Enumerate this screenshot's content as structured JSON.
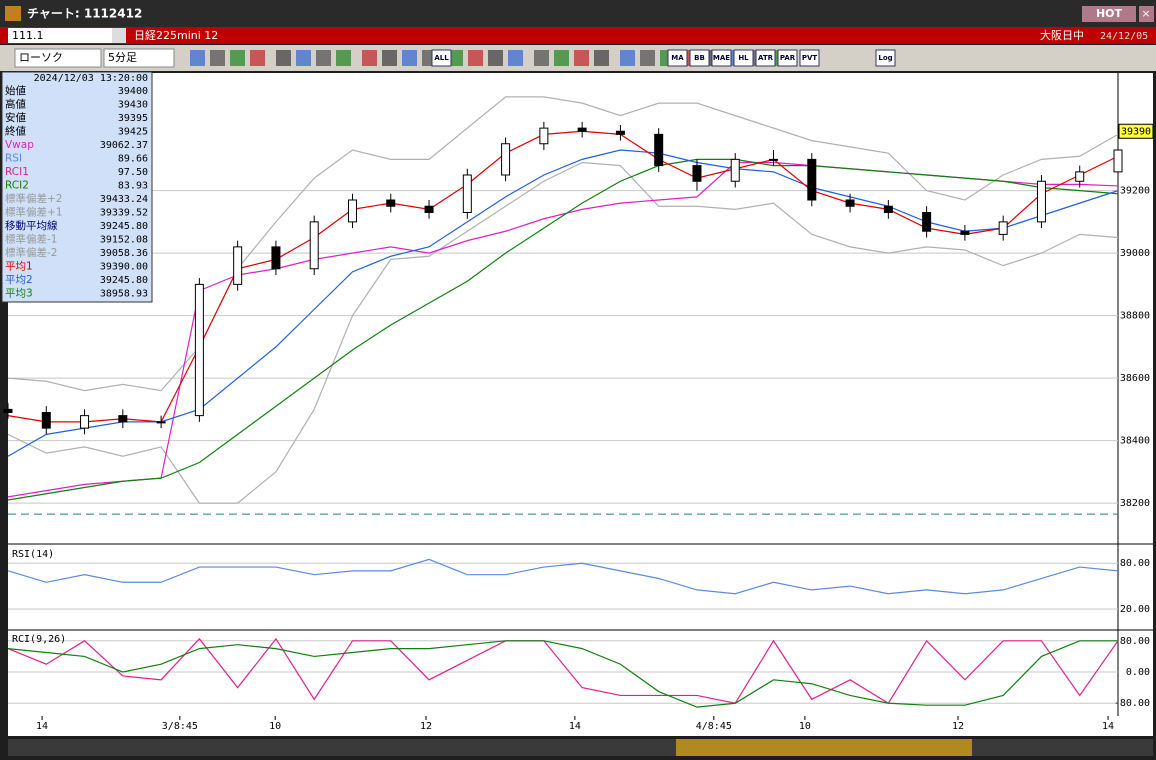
{
  "window": {
    "title": "チャート: 1112412",
    "hot": "HOT"
  },
  "header": {
    "code": "111.1",
    "name": "日経225mini 12",
    "session": "大阪日中",
    "date": "24/12/05"
  },
  "toolbar": {
    "chart_type": "ローソク",
    "interval": "5分足",
    "buttons": [
      "ALL",
      "MA",
      "BB",
      "MAE",
      "HL",
      "ATR",
      "PAR",
      "PVT",
      "Log"
    ]
  },
  "info_panel": {
    "datetime": "2024/12/03  13:20:00",
    "rows": [
      {
        "label": "始値",
        "value": "39400",
        "color": "#000000"
      },
      {
        "label": "高値",
        "value": "39430",
        "color": "#000000"
      },
      {
        "label": "安値",
        "value": "39395",
        "color": "#000000"
      },
      {
        "label": "終値",
        "value": "39425",
        "color": "#000000"
      },
      {
        "label": "Vwap",
        "value": "39062.37",
        "color": "#e020c0"
      },
      {
        "label": "RSI",
        "value": "89.66",
        "color": "#5a8ae0"
      },
      {
        "label": "RCI1",
        "value": "97.50",
        "color": "#e0208a"
      },
      {
        "label": "RCI2",
        "value": "83.93",
        "color": "#108010"
      },
      {
        "label": "標準偏差+2",
        "value": "39433.24",
        "color": "#999999"
      },
      {
        "label": "標準偏差+1",
        "value": "39339.52",
        "color": "#999999"
      },
      {
        "label": "移動平均線",
        "value": "39245.80",
        "color": "#000080"
      },
      {
        "label": "標準偏差-1",
        "value": "39152.08",
        "color": "#999999"
      },
      {
        "label": "標準偏差-2",
        "value": "39058.36",
        "color": "#999999"
      },
      {
        "label": "平均1",
        "value": "39390.00",
        "color": "#e00000"
      },
      {
        "label": "平均2",
        "value": "39245.80",
        "color": "#2060e0"
      },
      {
        "label": "平均3",
        "value": "38958.93",
        "color": "#108010"
      }
    ]
  },
  "chart_data": [
    {
      "type": "candlestick",
      "ylim": [
        38082,
        39570
      ],
      "yticks": [
        39200,
        39000,
        38800,
        38600,
        38400,
        38200
      ],
      "grid": true,
      "xlim": [
        0,
        29
      ],
      "xticks": [
        {
          "value": 0.89,
          "label": "14"
        },
        {
          "value": 4.49,
          "label": "3/8:45"
        },
        {
          "value": 6.98,
          "label": "10"
        },
        {
          "value": 10.92,
          "label": "12"
        },
        {
          "value": 14.81,
          "label": "14"
        },
        {
          "value": 18.44,
          "label": "4/8:45"
        },
        {
          "value": 20.82,
          "label": "10"
        },
        {
          "value": 24.82,
          "label": "12"
        },
        {
          "value": 28.74,
          "label": "14"
        }
      ],
      "last_price": 39390,
      "level": 38165,
      "up_color": "#ffffff",
      "down_color": "#000000",
      "open": [
        38500,
        38490,
        38440,
        38480,
        38460,
        38480,
        38900,
        39020,
        38950,
        39100,
        39170,
        39150,
        39130,
        39250,
        39350,
        39400,
        39390,
        39380,
        39280,
        39230,
        39300,
        39300,
        39170,
        39150,
        39130,
        39070,
        39060,
        39100,
        39230,
        39260
      ],
      "high": [
        38520,
        38510,
        38500,
        38500,
        38480,
        38920,
        39040,
        39040,
        39120,
        39190,
        39190,
        39170,
        39270,
        39370,
        39420,
        39420,
        39410,
        39400,
        39300,
        39320,
        39330,
        39320,
        39190,
        39170,
        39150,
        39090,
        39120,
        39250,
        39280,
        39350
      ],
      "low": [
        38470,
        38420,
        38420,
        38440,
        38440,
        38460,
        38880,
        38930,
        38930,
        39080,
        39130,
        39110,
        39110,
        39230,
        39330,
        39370,
        39360,
        39260,
        39200,
        39210,
        39280,
        39150,
        39130,
        39110,
        39050,
        39040,
        39040,
        39080,
        39210,
        39240
      ],
      "close": [
        38490,
        38440,
        38480,
        38460,
        38460,
        38900,
        39020,
        38950,
        39100,
        39170,
        39150,
        39130,
        39250,
        39350,
        39400,
        39390,
        39380,
        39280,
        39230,
        39300,
        39300,
        39170,
        39150,
        39130,
        39070,
        39060,
        39100,
        39230,
        39260,
        39330
      ],
      "series": [
        {
          "name": "BB+",
          "color": "#b0b0b0",
          "values": [
            38600,
            38590,
            38560,
            38580,
            38560,
            38700,
            38950,
            39100,
            39240,
            39330,
            39300,
            39300,
            39400,
            39500,
            39500,
            39480,
            39440,
            39480,
            39480,
            39440,
            39400,
            39360,
            39340,
            39320,
            39200,
            39170,
            39250,
            39300,
            39310,
            39380
          ]
        },
        {
          "name": "BB-",
          "color": "#b0b0b0",
          "values": [
            38420,
            38360,
            38380,
            38350,
            38380,
            38200,
            38200,
            38300,
            38500,
            38800,
            38980,
            38990,
            39070,
            39150,
            39230,
            39290,
            39280,
            39150,
            39150,
            39140,
            39160,
            39060,
            39020,
            39000,
            39020,
            39010,
            38960,
            39000,
            39060,
            39050
          ]
        },
        {
          "name": "Vwap",
          "color": "#e020c0",
          "values": [
            38220,
            38240,
            38260,
            38270,
            38280,
            38880,
            38930,
            38950,
            38980,
            39000,
            39020,
            39000,
            39040,
            39070,
            39110,
            39140,
            39160,
            39170,
            39180,
            39290,
            39290,
            39280,
            39270,
            39260,
            39250,
            39240,
            39230,
            39220,
            39220,
            39215
          ]
        },
        {
          "name": "平均3",
          "color": "#108010",
          "values": [
            38210,
            38230,
            38250,
            38270,
            38280,
            38330,
            38420,
            38510,
            38600,
            38690,
            38770,
            38840,
            38910,
            39000,
            39080,
            39160,
            39230,
            39280,
            39300,
            39300,
            39280,
            39280,
            39270,
            39260,
            39250,
            39240,
            39230,
            39210,
            39200,
            39190
          ]
        },
        {
          "name": "平均2",
          "color": "#2060e0",
          "values": [
            38350,
            38420,
            38440,
            38460,
            38460,
            38500,
            38600,
            38700,
            38820,
            38940,
            38990,
            39020,
            39100,
            39180,
            39250,
            39300,
            39330,
            39320,
            39290,
            39270,
            39260,
            39210,
            39180,
            39150,
            39100,
            39070,
            39080,
            39120,
            39160,
            39200
          ]
        },
        {
          "name": "平均1",
          "color": "#e00000",
          "values": [
            38480,
            38460,
            38460,
            38470,
            38460,
            38700,
            38950,
            38980,
            39050,
            39140,
            39160,
            39140,
            39220,
            39320,
            39380,
            39390,
            39380,
            39300,
            39240,
            39270,
            39300,
            39200,
            39160,
            39140,
            39080,
            39060,
            39080,
            39190,
            39250,
            39310
          ]
        }
      ]
    },
    {
      "type": "line",
      "title": "RSI(14)",
      "ylim": [
        -5,
        100
      ],
      "yticks": [
        {
          "value": 80,
          "label": "80.00"
        },
        {
          "value": 20,
          "label": "20.00"
        }
      ],
      "series": [
        {
          "name": "RSI",
          "color": "#5a8ae0",
          "values": [
            70,
            55,
            65,
            55,
            55,
            75,
            75,
            75,
            65,
            70,
            70,
            85,
            65,
            65,
            75,
            80,
            70,
            60,
            45,
            40,
            55,
            45,
            50,
            40,
            45,
            40,
            45,
            60,
            75,
            70
          ]
        }
      ]
    },
    {
      "type": "line",
      "title": "RCI(9,26)",
      "ylim": [
        -105,
        100
      ],
      "yticks": [
        {
          "value": 80,
          "label": "80.00"
        },
        {
          "value": 0,
          "label": "0.00"
        },
        {
          "value": -80,
          "label": "-80.00"
        }
      ],
      "series": [
        {
          "name": "RCI1",
          "color": "#e0208a",
          "values": [
            60,
            20,
            80,
            -10,
            -20,
            85,
            -40,
            85,
            -70,
            80,
            80,
            -20,
            30,
            80,
            80,
            -40,
            -60,
            -60,
            -60,
            -80,
            80,
            -70,
            -20,
            -80,
            80,
            -20,
            80,
            80,
            -60,
            80
          ]
        },
        {
          "name": "RCI2",
          "color": "#108010",
          "values": [
            60,
            50,
            40,
            0,
            20,
            60,
            70,
            60,
            40,
            50,
            60,
            60,
            70,
            80,
            80,
            60,
            20,
            -50,
            -90,
            -80,
            -20,
            -30,
            -60,
            -80,
            -85,
            -85,
            -60,
            40,
            80,
            80
          ]
        }
      ]
    }
  ]
}
